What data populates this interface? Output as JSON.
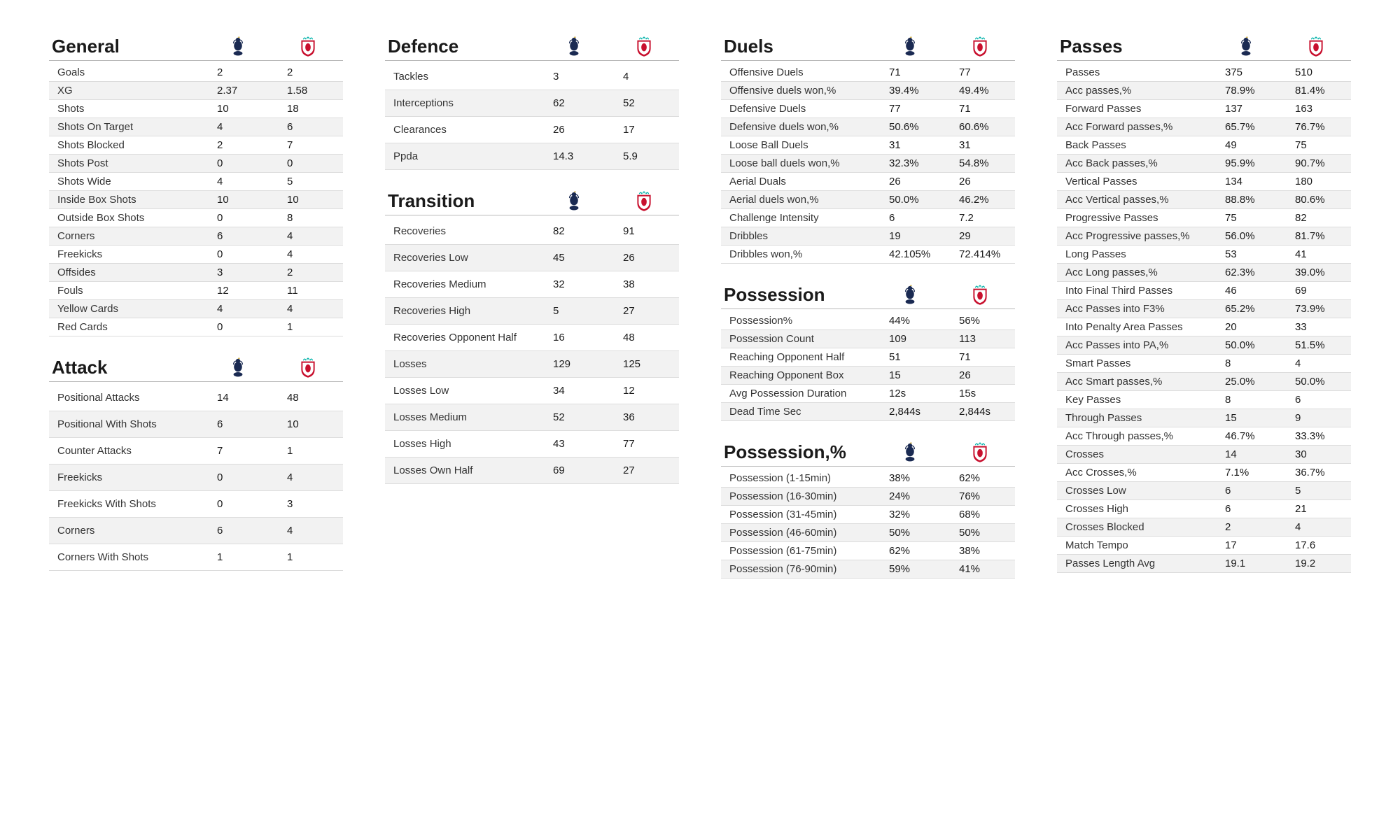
{
  "teams": {
    "home": "Tottenham",
    "away": "Liverpool",
    "home_colors": {
      "primary": "#1a2a52",
      "secondary": "#ffffff"
    },
    "away_colors": {
      "primary": "#c8102e",
      "secondary": "#00b2a9"
    }
  },
  "style": {
    "background_color": "#ffffff",
    "row_stripe_color": "#f2f2f2",
    "divider_color": "#b8b8b8",
    "row_border_color": "#dcdcdc",
    "title_fontsize": 26,
    "row_fontsize": 15,
    "font_family": "Segoe UI"
  },
  "columns": [
    [
      {
        "title": "General",
        "spacing": "tight",
        "rows": [
          [
            "Goals",
            "2",
            "2"
          ],
          [
            "XG",
            "2.37",
            "1.58"
          ],
          [
            "Shots",
            "10",
            "18"
          ],
          [
            "Shots On Target",
            "4",
            "6"
          ],
          [
            "Shots Blocked",
            "2",
            "7"
          ],
          [
            "Shots Post",
            "0",
            "0"
          ],
          [
            "Shots Wide",
            "4",
            "5"
          ],
          [
            "Inside Box Shots",
            "10",
            "10"
          ],
          [
            "Outside Box Shots",
            "0",
            "8"
          ],
          [
            "Corners",
            "6",
            "4"
          ],
          [
            "Freekicks",
            "0",
            "4"
          ],
          [
            "Offsides",
            "3",
            "2"
          ],
          [
            "Fouls",
            "12",
            "11"
          ],
          [
            "Yellow Cards",
            "4",
            "4"
          ],
          [
            "Red Cards",
            "0",
            "1"
          ]
        ]
      },
      {
        "title": "Attack",
        "spacing": "wide",
        "rows": [
          [
            "Positional Attacks",
            "14",
            "48"
          ],
          [
            "Positional With Shots",
            "6",
            "10"
          ],
          [
            "Counter Attacks",
            "7",
            "1"
          ],
          [
            "Freekicks",
            "0",
            "4"
          ],
          [
            "Freekicks With Shots",
            "0",
            "3"
          ],
          [
            "Corners",
            "6",
            "4"
          ],
          [
            "Corners With Shots",
            "1",
            "1"
          ]
        ]
      }
    ],
    [
      {
        "title": "Defence",
        "spacing": "wide",
        "rows": [
          [
            "Tackles",
            "3",
            "4"
          ],
          [
            "Interceptions",
            "62",
            "52"
          ],
          [
            "Clearances",
            "26",
            "17"
          ],
          [
            "Ppda",
            "14.3",
            "5.9"
          ]
        ]
      },
      {
        "title": "Transition",
        "spacing": "wide",
        "rows": [
          [
            "Recoveries",
            "82",
            "91"
          ],
          [
            "Recoveries Low",
            "45",
            "26"
          ],
          [
            "Recoveries Medium",
            "32",
            "38"
          ],
          [
            "Recoveries High",
            "5",
            "27"
          ],
          [
            "Recoveries Opponent Half",
            "16",
            "48"
          ],
          [
            "Losses",
            "129",
            "125"
          ],
          [
            "Losses Low",
            "34",
            "12"
          ],
          [
            "Losses Medium",
            "52",
            "36"
          ],
          [
            "Losses High",
            "43",
            "77"
          ],
          [
            "Losses Own Half",
            "69",
            "27"
          ]
        ]
      }
    ],
    [
      {
        "title": "Duels",
        "spacing": "tight",
        "rows": [
          [
            "Offensive Duels",
            "71",
            "77"
          ],
          [
            "Offensive duels won,%",
            "39.4%",
            "49.4%"
          ],
          [
            "Defensive Duels",
            "77",
            "71"
          ],
          [
            "Defensive duels won,%",
            "50.6%",
            "60.6%"
          ],
          [
            "Loose Ball Duels",
            "31",
            "31"
          ],
          [
            "Loose ball duels won,%",
            "32.3%",
            "54.8%"
          ],
          [
            "Aerial Duals",
            "26",
            "26"
          ],
          [
            "Aerial duels won,%",
            "50.0%",
            "46.2%"
          ],
          [
            "Challenge Intensity",
            "6",
            "7.2"
          ],
          [
            "Dribbles",
            "19",
            "29"
          ],
          [
            "Dribbles won,%",
            "42.105%",
            "72.414%"
          ]
        ]
      },
      {
        "title": "Possession",
        "spacing": "tight",
        "rows": [
          [
            "Possession%",
            "44%",
            "56%"
          ],
          [
            "Possession Count",
            "109",
            "113"
          ],
          [
            "Reaching Opponent Half",
            "51",
            "71"
          ],
          [
            "Reaching Opponent Box",
            "15",
            "26"
          ],
          [
            "Avg Possession Duration",
            "12s",
            "15s"
          ],
          [
            "Dead Time Sec",
            "2,844s",
            "2,844s"
          ]
        ]
      },
      {
        "title": "Possession,%",
        "spacing": "tight",
        "rows": [
          [
            "Possession (1-15min)",
            "38%",
            "62%"
          ],
          [
            "Possession (16-30min)",
            "24%",
            "76%"
          ],
          [
            "Possession (31-45min)",
            "32%",
            "68%"
          ],
          [
            "Possession (46-60min)",
            "50%",
            "50%"
          ],
          [
            "Possession (61-75min)",
            "62%",
            "38%"
          ],
          [
            "Possession (76-90min)",
            "59%",
            "41%"
          ]
        ]
      }
    ],
    [
      {
        "title": "Passes",
        "spacing": "tight",
        "rows": [
          [
            "Passes",
            "375",
            "510"
          ],
          [
            "Acc passes,%",
            "78.9%",
            "81.4%"
          ],
          [
            "Forward Passes",
            "137",
            "163"
          ],
          [
            "Acc Forward passes,%",
            "65.7%",
            "76.7%"
          ],
          [
            "Back Passes",
            "49",
            "75"
          ],
          [
            "Acc Back passes,%",
            "95.9%",
            "90.7%"
          ],
          [
            "Vertical Passes",
            "134",
            "180"
          ],
          [
            "Acc Vertical passes,%",
            "88.8%",
            "80.6%"
          ],
          [
            "Progressive Passes",
            "75",
            "82"
          ],
          [
            "Acc Progressive passes,%",
            "56.0%",
            "81.7%"
          ],
          [
            "Long Passes",
            "53",
            "41"
          ],
          [
            "Acc Long passes,%",
            "62.3%",
            "39.0%"
          ],
          [
            "Into Final Third Passes",
            "46",
            "69"
          ],
          [
            "Acc Passes into F3%",
            "65.2%",
            "73.9%"
          ],
          [
            "Into Penalty Area Passes",
            "20",
            "33"
          ],
          [
            "Acc Passes into PA,%",
            "50.0%",
            "51.5%"
          ],
          [
            "Smart Passes",
            "8",
            "4"
          ],
          [
            "Acc Smart passes,%",
            "25.0%",
            "50.0%"
          ],
          [
            "Key Passes",
            "8",
            "6"
          ],
          [
            "Through Passes",
            "15",
            "9"
          ],
          [
            "Acc Through passes,%",
            "46.7%",
            "33.3%"
          ],
          [
            "Crosses",
            "14",
            "30"
          ],
          [
            "Acc Crosses,%",
            "7.1%",
            "36.7%"
          ],
          [
            "Crosses Low",
            "6",
            "5"
          ],
          [
            "Crosses High",
            "6",
            "21"
          ],
          [
            "Crosses Blocked",
            "2",
            "4"
          ],
          [
            "Match Tempo",
            "17",
            "17.6"
          ],
          [
            "Passes Length Avg",
            "19.1",
            "19.2"
          ]
        ]
      }
    ]
  ]
}
